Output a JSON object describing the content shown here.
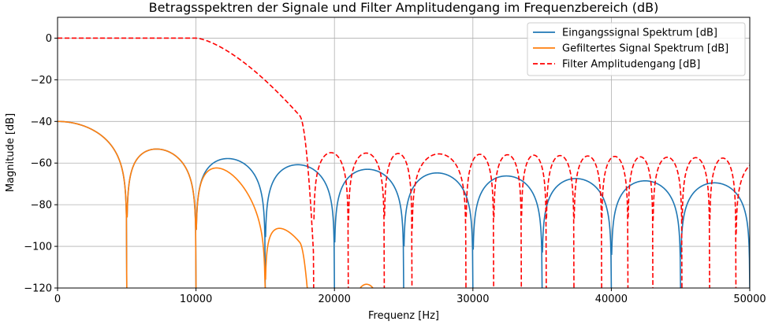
{
  "chart_data": {
    "type": "line",
    "title": "Betragsspektren der Signale und Filter Amplitudengang im Frequenzbereich (dB)",
    "xlabel": "Frequenz [Hz]",
    "ylabel": "Magnitude [dB]",
    "xlim": [
      0,
      50000
    ],
    "ylim": [
      -120,
      10
    ],
    "x_ticks": [
      0,
      10000,
      20000,
      30000,
      40000,
      50000
    ],
    "x_tick_labels": [
      "0",
      "10000",
      "20000",
      "30000",
      "40000",
      "50000"
    ],
    "y_ticks": [
      0,
      -20,
      -40,
      -60,
      -80,
      -100,
      -120
    ],
    "y_tick_labels": [
      "0",
      "−20",
      "−40",
      "−60",
      "−80",
      "−100",
      "−120"
    ],
    "grid": true,
    "legend_position": "top-right",
    "series": [
      {
        "name": "Eingangssignal Spektrum [dB]",
        "color": "#1f77b4",
        "style": "solid",
        "model": "sinc",
        "level_dc_db": -40,
        "null_spacing_hz": 5000,
        "peak_rolloff": "1/f"
      },
      {
        "name": "Gefiltertes Signal Spektrum [dB]",
        "color": "#ff7f0e",
        "style": "solid",
        "model": "sinc_times_filter",
        "level_dc_db": -40,
        "null_spacing_hz": 5000
      },
      {
        "name": "Filter Amplitudengang [dB]",
        "color": "#ff0000",
        "style": "dashed",
        "model": "fir_lowpass",
        "passband_db": 0,
        "cutoff_hz": 15000,
        "stopband_edge_hz": 18500,
        "sidelobe_peak_db": -55,
        "sidelobe_nulls_hz": [
          18500,
          21000,
          23600,
          25600,
          29500,
          31500,
          33500,
          35300,
          37300,
          39300,
          41200,
          43000,
          45100,
          47100,
          49000
        ]
      }
    ]
  }
}
